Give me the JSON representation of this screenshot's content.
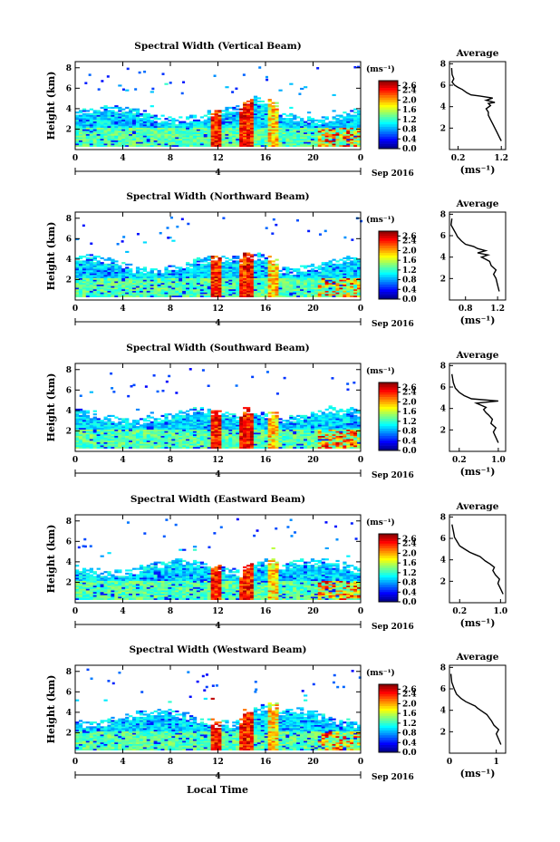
{
  "chart_data": [
    {
      "type": "heatmap",
      "title": "Spectral Width (Vertical Beam)",
      "ylabel": "Height (km)",
      "x_ticks": [
        "0",
        "4",
        "8",
        "12",
        "16",
        "20",
        "0"
      ],
      "y_ticks": [
        "2",
        "4",
        "6",
        "8"
      ],
      "date_tick": "4",
      "date_label": "Sep 2016",
      "colorbar": {
        "unit": "(ms⁻¹)",
        "ticks": [
          "2.6",
          "2.4",
          "2.0",
          "1.6",
          "1.2",
          "0.8",
          "0.4",
          "0.0"
        ],
        "range": [
          0.0,
          2.8
        ]
      },
      "profile": {
        "title": "Average",
        "xlabel": "(ms⁻¹)",
        "x_ticks": [
          "0.2",
          "1.2"
        ],
        "y_ticks": [
          "2",
          "4",
          "6",
          "8"
        ],
        "xlim": [
          0.0,
          1.3
        ],
        "x": [
          1.2,
          1.15,
          1.1,
          1.05,
          1.0,
          0.95,
          0.9,
          0.9,
          0.85,
          0.95,
          0.9,
          1.05,
          0.85,
          1.0,
          0.7,
          0.5,
          0.4,
          0.3,
          0.2,
          0.12,
          0.06,
          0.1,
          0.06,
          0.05
        ],
        "y": [
          0.8,
          1.2,
          1.6,
          2.0,
          2.4,
          2.8,
          3.2,
          3.5,
          3.8,
          4.1,
          4.3,
          4.4,
          4.6,
          4.8,
          5.0,
          5.1,
          5.3,
          5.6,
          5.8,
          6.0,
          6.3,
          6.6,
          7.0,
          7.6
        ]
      }
    },
    {
      "type": "heatmap",
      "title": "Spectral Width (Northward Beam)",
      "ylabel": "Height (km)",
      "x_ticks": [
        "0",
        "4",
        "8",
        "12",
        "16",
        "20",
        "0"
      ],
      "y_ticks": [
        "2",
        "4",
        "6",
        "8"
      ],
      "date_tick": "4",
      "date_label": "Sep 2016",
      "colorbar": {
        "unit": "(ms⁻¹)",
        "ticks": [
          "2.6",
          "2.4",
          "2.0",
          "1.6",
          "1.2",
          "0.8",
          "0.4",
          "0.0"
        ],
        "range": [
          0.0,
          2.8
        ]
      },
      "profile": {
        "title": "Average",
        "xlabel": "(ms⁻¹)",
        "x_ticks": [
          "0.8",
          "1.2"
        ],
        "y_ticks": [
          "2",
          "4",
          "6",
          "8"
        ],
        "xlim": [
          0.6,
          1.3
        ],
        "x": [
          1.22,
          1.2,
          1.18,
          1.15,
          1.18,
          1.12,
          1.1,
          1.05,
          1.0,
          1.08,
          0.95,
          1.05,
          0.95,
          0.9,
          0.8,
          0.75,
          0.7,
          0.68,
          0.65,
          0.62,
          0.63
        ],
        "y": [
          0.8,
          1.4,
          2.0,
          2.4,
          2.8,
          3.2,
          3.6,
          3.8,
          4.0,
          4.2,
          4.4,
          4.6,
          4.8,
          5.0,
          5.2,
          5.5,
          5.9,
          6.2,
          6.6,
          7.0,
          7.6
        ]
      }
    },
    {
      "type": "heatmap",
      "title": "Spectral Width (Southward Beam)",
      "ylabel": "Height (km)",
      "x_ticks": [
        "0",
        "4",
        "8",
        "12",
        "16",
        "20",
        "0"
      ],
      "y_ticks": [
        "2",
        "4",
        "6",
        "8"
      ],
      "date_tick": "4",
      "date_label": "Sep 2016",
      "colorbar": {
        "unit": "(ms⁻¹)",
        "ticks": [
          "2.6",
          "2.4",
          "2.0",
          "1.6",
          "1.2",
          "0.8",
          "0.4",
          "0.0"
        ],
        "range": [
          0.0,
          2.8
        ]
      },
      "profile": {
        "title": "Average",
        "xlabel": "(ms⁻¹)",
        "x_ticks": [
          "0.2",
          "1.0"
        ],
        "y_ticks": [
          "2",
          "4",
          "6",
          "8"
        ],
        "xlim": [
          0.0,
          1.15
        ],
        "x": [
          1.0,
          0.95,
          0.9,
          0.95,
          0.85,
          0.88,
          0.8,
          0.75,
          0.7,
          0.75,
          0.65,
          0.55,
          1.0,
          0.45,
          0.3,
          0.2,
          0.12,
          0.08,
          0.05
        ],
        "y": [
          0.8,
          1.3,
          1.8,
          2.2,
          2.6,
          3.0,
          3.4,
          3.6,
          3.9,
          4.1,
          4.3,
          4.5,
          4.7,
          4.9,
          5.2,
          5.5,
          5.9,
          6.4,
          7.2
        ]
      }
    },
    {
      "type": "heatmap",
      "title": "Spectral Width (Eastward Beam)",
      "ylabel": "Height (km)",
      "x_ticks": [
        "0",
        "4",
        "8",
        "12",
        "16",
        "20",
        "0"
      ],
      "y_ticks": [
        "2",
        "4",
        "6",
        "8"
      ],
      "date_tick": "4",
      "date_label": "Sep 2016",
      "colorbar": {
        "unit": "(ms⁻¹)",
        "ticks": [
          "2.6",
          "2.4",
          "2.0",
          "1.6",
          "1.2",
          "0.8",
          "0.4",
          "0.0"
        ],
        "range": [
          0.0,
          2.8
        ]
      },
      "profile": {
        "title": "Average",
        "xlabel": "(ms⁻¹)",
        "x_ticks": [
          "0.2",
          "1.0"
        ],
        "y_ticks": [
          "2",
          "4",
          "6",
          "8"
        ],
        "xlim": [
          0.0,
          1.1
        ],
        "x": [
          1.05,
          1.0,
          0.95,
          0.98,
          0.9,
          0.85,
          0.88,
          0.8,
          0.7,
          0.65,
          0.6,
          0.5,
          0.4,
          0.3,
          0.2,
          0.15,
          0.1,
          0.08,
          0.05
        ],
        "y": [
          0.8,
          1.3,
          1.8,
          2.2,
          2.6,
          3.0,
          3.3,
          3.6,
          3.9,
          4.1,
          4.3,
          4.5,
          4.7,
          5.0,
          5.3,
          5.7,
          6.1,
          6.6,
          7.3
        ]
      }
    },
    {
      "type": "heatmap",
      "title": "Spectral Width (Westward Beam)",
      "ylabel": "Height (km)",
      "x_ticks": [
        "0",
        "4",
        "8",
        "12",
        "16",
        "20",
        "0"
      ],
      "y_ticks": [
        "2",
        "4",
        "6",
        "8"
      ],
      "date_tick": "4",
      "date_label": "Sep 2016",
      "xlabel": "Local Time",
      "colorbar": {
        "unit": "(ms⁻¹)",
        "ticks": [
          "2.6",
          "2.4",
          "2.0",
          "1.6",
          "1.2",
          "0.8",
          "0.4",
          "0.0"
        ],
        "range": [
          0.0,
          2.8
        ]
      },
      "profile": {
        "title": "Average",
        "xlabel": "(ms⁻¹)",
        "x_ticks": [
          "0",
          "1"
        ],
        "y_ticks": [
          "2",
          "4",
          "6",
          "8"
        ],
        "xlim": [
          0.0,
          1.2
        ],
        "x": [
          1.1,
          1.05,
          1.0,
          1.05,
          0.95,
          0.9,
          0.85,
          0.8,
          0.7,
          0.6,
          0.55,
          0.45,
          0.35,
          0.25,
          0.15,
          0.1,
          0.05,
          0.03
        ],
        "y": [
          0.8,
          1.3,
          1.8,
          2.2,
          2.6,
          3.0,
          3.3,
          3.6,
          3.9,
          4.2,
          4.4,
          4.6,
          4.8,
          5.1,
          5.5,
          6.0,
          6.6,
          7.4
        ]
      }
    }
  ]
}
